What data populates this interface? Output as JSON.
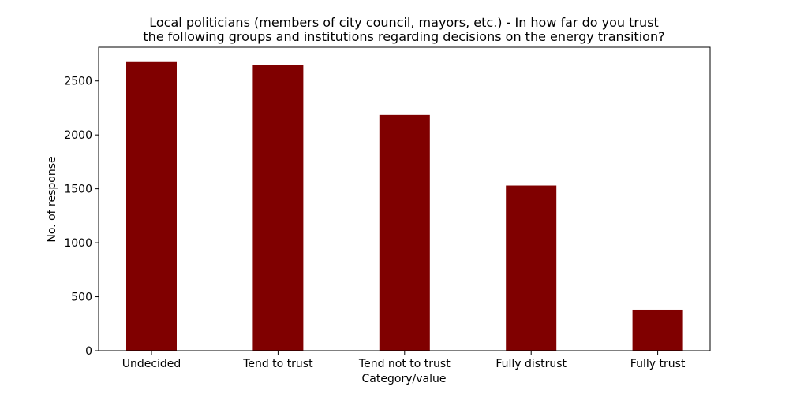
{
  "chart_data": {
    "type": "bar",
    "title_lines": [
      "Local politicians (members of city council, mayors, etc.) - In how far do you trust",
      "the following groups and institutions regarding decisions on the energy transition?"
    ],
    "xlabel": "Category/value",
    "ylabel": "No. of response",
    "categories": [
      "Undecided",
      "Tend to trust",
      "Tend not to trust",
      "Fully distrust",
      "Fully trust"
    ],
    "values": [
      2675,
      2645,
      2185,
      1530,
      380
    ],
    "ylim": [
      0,
      2812
    ],
    "yticks": [
      0,
      500,
      1000,
      1500,
      2000,
      2500
    ],
    "ytick_labels": [
      "0",
      "500",
      "1000",
      "1500",
      "2000",
      "2500"
    ],
    "bar_color": "#800000",
    "grid": false
  }
}
